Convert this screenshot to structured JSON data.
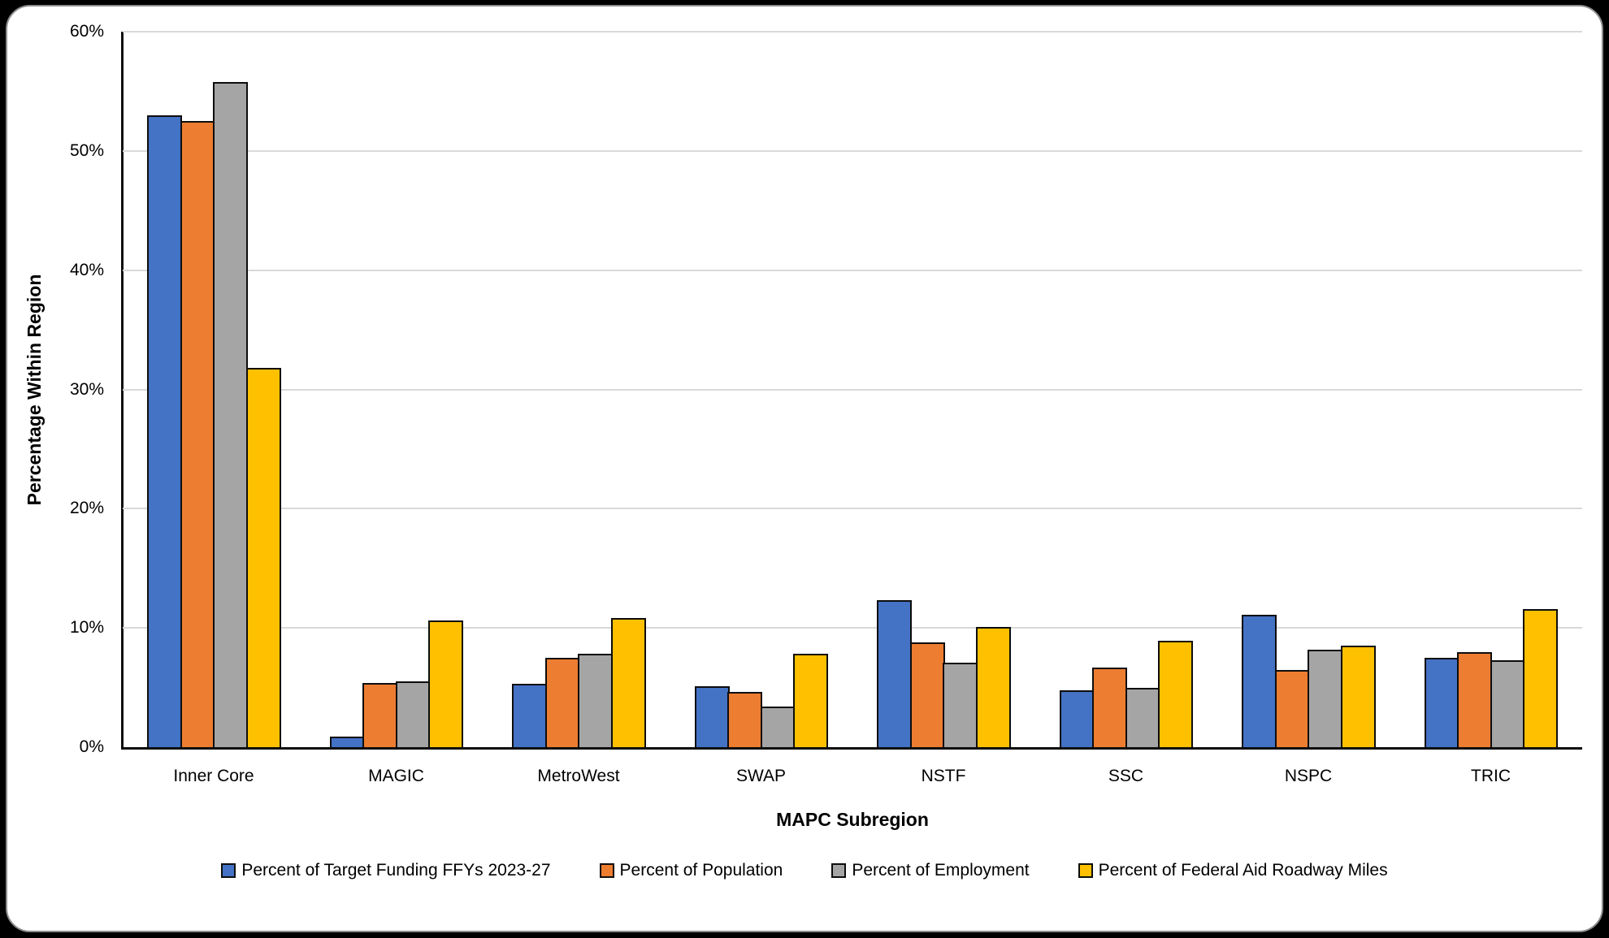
{
  "chart_data": {
    "type": "bar",
    "title": "",
    "xlabel": "MAPC Subregion",
    "ylabel": "Percentage Within Region",
    "categories": [
      "Inner Core",
      "MAGIC",
      "MetroWest",
      "SWAP",
      "NSTF",
      "SSC",
      "NSPC",
      "TRIC"
    ],
    "series": [
      {
        "name": "Percent of Target Funding FFYs 2023-27",
        "color": "#4472C4",
        "values": [
          53.0,
          0.9,
          5.3,
          5.1,
          12.3,
          4.8,
          11.1,
          7.5
        ]
      },
      {
        "name": "Percent of Population",
        "color": "#ED7D31",
        "values": [
          52.5,
          5.4,
          7.5,
          4.6,
          8.8,
          6.7,
          6.5,
          8.0
        ]
      },
      {
        "name": "Percent of Employment",
        "color": "#A5A5A5",
        "values": [
          55.8,
          5.5,
          7.8,
          3.4,
          7.1,
          5.0,
          8.2,
          7.3
        ]
      },
      {
        "name": "Percent of Federal Aid Roadway Miles",
        "color": "#FFC000",
        "values": [
          31.8,
          10.6,
          10.8,
          7.8,
          10.1,
          8.9,
          8.5,
          11.6
        ]
      }
    ],
    "ylim": [
      0,
      60
    ],
    "ytick_step": 10,
    "ytick_labels": [
      "0%",
      "10%",
      "20%",
      "30%",
      "40%",
      "50%",
      "60%"
    ],
    "grid": "horizontal-gridlines-on",
    "legend_position": "bottom"
  },
  "colors": {
    "page_background": "#000000",
    "card_background": "#FFFFFF",
    "gridline": "#D9D9D9",
    "axis": "#0D0D0D",
    "bar_outline": "#0D0D0D"
  }
}
